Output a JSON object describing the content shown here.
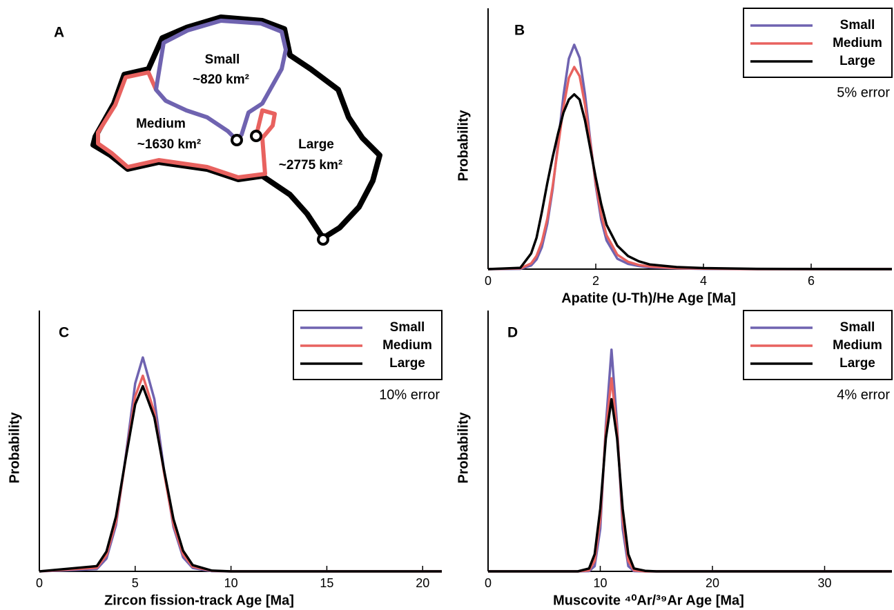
{
  "panel_a": {
    "label": "A",
    "regions": [
      {
        "name": "Small",
        "area": "~820 km²"
      },
      {
        "name": "Medium",
        "area": "~1630 km²"
      },
      {
        "name": "Large",
        "area": "~2775 km²"
      }
    ]
  },
  "chart_data": [
    {
      "type": "line",
      "panel_label": "B",
      "xlabel": "Apatite (U-Th)/He Age [Ma]",
      "ylabel": "Probability",
      "annotation": "5% error",
      "legend": "upper right",
      "xlim": [
        0,
        7.5
      ],
      "xticks": [
        0,
        2,
        4,
        6
      ],
      "ylim": [
        0,
        1
      ],
      "x": [
        0,
        0.6,
        0.8,
        0.9,
        1.0,
        1.1,
        1.2,
        1.3,
        1.4,
        1.5,
        1.6,
        1.7,
        1.8,
        1.9,
        2.0,
        2.1,
        2.2,
        2.4,
        2.6,
        2.8,
        3.0,
        3.5,
        4.0,
        5.0,
        7.5
      ],
      "series": [
        {
          "name": "Small",
          "color": "#6f63b0",
          "values": [
            0,
            0.001,
            0.014,
            0.037,
            0.085,
            0.174,
            0.308,
            0.483,
            0.666,
            0.807,
            0.86,
            0.81,
            0.67,
            0.49,
            0.32,
            0.19,
            0.11,
            0.04,
            0.02,
            0.012,
            0.007,
            0.003,
            0.001,
            0,
            0
          ]
        },
        {
          "name": "Medium",
          "color": "#e8625f",
          "values": [
            0,
            0.003,
            0.022,
            0.051,
            0.105,
            0.193,
            0.318,
            0.47,
            0.62,
            0.733,
            0.775,
            0.74,
            0.63,
            0.48,
            0.33,
            0.21,
            0.13,
            0.055,
            0.028,
            0.016,
            0.01,
            0.004,
            0.002,
            0,
            0
          ]
        },
        {
          "name": "Large",
          "color": "#000000",
          "values": [
            0,
            0.005,
            0.06,
            0.12,
            0.22,
            0.33,
            0.43,
            0.52,
            0.6,
            0.65,
            0.67,
            0.65,
            0.57,
            0.46,
            0.35,
            0.25,
            0.17,
            0.09,
            0.05,
            0.03,
            0.018,
            0.008,
            0.004,
            0.001,
            0
          ]
        }
      ]
    },
    {
      "type": "line",
      "panel_label": "C",
      "xlabel": "Zircon fission-track Age [Ma]",
      "ylabel": "Probability",
      "annotation": "10% error",
      "legend": "upper right",
      "xlim": [
        0,
        21
      ],
      "xticks": [
        0,
        5,
        10,
        15,
        20
      ],
      "ylim": [
        0,
        1
      ],
      "x": [
        0,
        3,
        3.5,
        4,
        4.5,
        5,
        5.4,
        6,
        6.5,
        7,
        7.5,
        8,
        9,
        10,
        21
      ],
      "series": [
        {
          "name": "Small",
          "color": "#6f63b0",
          "values": [
            0,
            0.009,
            0.049,
            0.177,
            0.437,
            0.72,
            0.82,
            0.66,
            0.39,
            0.17,
            0.054,
            0.013,
            0.001,
            0,
            0
          ]
        },
        {
          "name": "Medium",
          "color": "#e8625f",
          "values": [
            0,
            0.014,
            0.062,
            0.19,
            0.43,
            0.67,
            0.75,
            0.61,
            0.38,
            0.18,
            0.065,
            0.018,
            0.002,
            0,
            0
          ]
        },
        {
          "name": "Large",
          "color": "#000000",
          "values": [
            0,
            0.02,
            0.076,
            0.21,
            0.43,
            0.64,
            0.71,
            0.59,
            0.39,
            0.2,
            0.079,
            0.024,
            0.003,
            0,
            0
          ]
        }
      ]
    },
    {
      "type": "line",
      "panel_label": "D",
      "xlabel": "Muscovite ⁴⁰Ar/³⁹Ar Age [Ma]",
      "ylabel": "Probability",
      "annotation": "4% error",
      "legend": "upper right",
      "xlim": [
        0,
        36
      ],
      "xticks": [
        0,
        10,
        20,
        30
      ],
      "ylim": [
        0,
        1
      ],
      "x": [
        0,
        8,
        9,
        9.5,
        10,
        10.5,
        11,
        11.5,
        12,
        12.5,
        13,
        14,
        15,
        36
      ],
      "series": [
        {
          "name": "Small",
          "color": "#6f63b0",
          "values": [
            0,
            0,
            0.001,
            0.02,
            0.163,
            0.56,
            0.85,
            0.56,
            0.163,
            0.02,
            0.001,
            0,
            0,
            0
          ]
        },
        {
          "name": "Medium",
          "color": "#e8625f",
          "values": [
            0,
            0,
            0.004,
            0.04,
            0.2,
            0.54,
            0.74,
            0.54,
            0.2,
            0.04,
            0.004,
            0,
            0,
            0
          ]
        },
        {
          "name": "Large",
          "color": "#000000",
          "values": [
            0,
            0,
            0.011,
            0.066,
            0.24,
            0.51,
            0.66,
            0.51,
            0.24,
            0.066,
            0.011,
            0.002,
            0,
            0
          ]
        }
      ]
    }
  ]
}
